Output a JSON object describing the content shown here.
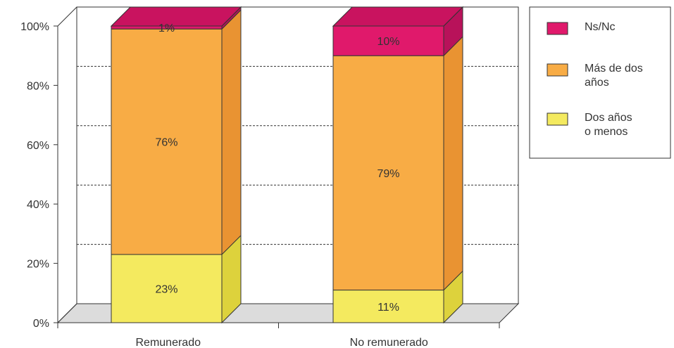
{
  "chart_data": {
    "type": "bar",
    "stacked": true,
    "style": "3d",
    "title": "",
    "xlabel": "",
    "ylabel": "",
    "categories": [
      "Remunerado",
      "No remunerado"
    ],
    "series": [
      {
        "name": "Dos años o menos",
        "values": [
          23,
          11
        ],
        "labels": [
          "23%",
          "11%"
        ],
        "color": "#f4ea5f",
        "side_color": "#ddd23c",
        "top_color": "#f7ef88"
      },
      {
        "name": "Más de dos años",
        "values": [
          76,
          79
        ],
        "labels": [
          "76%",
          "79%"
        ],
        "color": "#f8ac45",
        "side_color": "#e99332",
        "top_color": "#fac270"
      },
      {
        "name": "Ns/Nc",
        "values": [
          1,
          10
        ],
        "labels": [
          "1%",
          "10%"
        ],
        "color": "#e0196b",
        "side_color": "#b8125a",
        "top_color": "#c9135f"
      }
    ],
    "ylim": [
      0,
      100
    ],
    "yticks": [
      "0%",
      "20%",
      "40%",
      "60%",
      "80%",
      "100%"
    ],
    "grid": true,
    "legend_position": "right",
    "legend": [
      {
        "lines": [
          "Ns/Nc"
        ],
        "color": "#e0196b"
      },
      {
        "lines": [
          "Más de dos",
          "años"
        ],
        "color": "#f8ac45"
      },
      {
        "lines": [
          "Dos años",
          "o menos"
        ],
        "color": "#f4ea5f"
      }
    ]
  }
}
